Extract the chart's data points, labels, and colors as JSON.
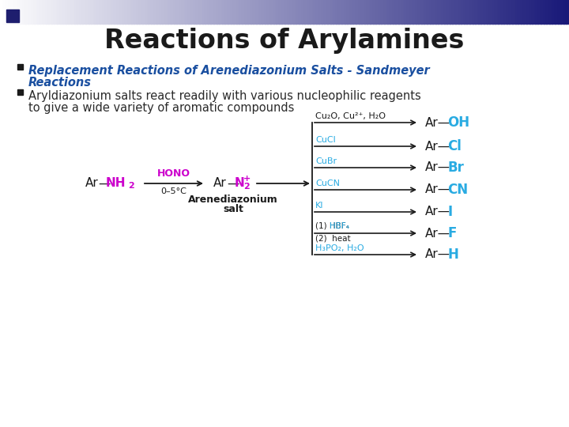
{
  "title": "Reactions of Arylamines",
  "bullet1_line1": "Replacement Reactions of Arenediazonium Salts - Sandmeyer",
  "bullet1_line2": "Reactions",
  "bullet2_line1": "Aryldiazonium salts react readily with various nucleophilic reagents",
  "bullet2_line2": "to give a wide variety of aromatic compounds",
  "title_color": "#1a1a1a",
  "bullet1_color": "#1a4fa0",
  "bullet2_color": "#2a2a2a",
  "reagent_hono_color": "#cc00cc",
  "cyan_color": "#29abe2",
  "black_color": "#1a1a1a",
  "bg_color": "#ffffff",
  "reactions": [
    {
      "reagent": "Cu₂O, Cu²⁺, H₂O",
      "product_prefix": "Ar—",
      "product_suffix": "OH",
      "reagent_cyan": false,
      "hbf_style": false
    },
    {
      "reagent": "CuCl",
      "product_prefix": "Ar—",
      "product_suffix": "Cl",
      "reagent_cyan": true,
      "hbf_style": false
    },
    {
      "reagent": "CuBr",
      "product_prefix": "Ar—",
      "product_suffix": "Br",
      "reagent_cyan": true,
      "hbf_style": false
    },
    {
      "reagent": "CuCN",
      "product_prefix": "Ar—",
      "product_suffix": "CN",
      "reagent_cyan": true,
      "hbf_style": false
    },
    {
      "reagent": "KI",
      "product_prefix": "Ar—",
      "product_suffix": "I",
      "reagent_cyan": true,
      "hbf_style": false
    },
    {
      "reagent": "(1) HBF₄",
      "product_prefix": "Ar—",
      "product_suffix": "F",
      "reagent_cyan": false,
      "hbf_style": true,
      "reagent2": "(2)  heat"
    },
    {
      "reagent": "H₃PO₂, H₂O",
      "product_prefix": "Ar—",
      "product_suffix": "H",
      "reagent_cyan": true,
      "hbf_style": false
    }
  ],
  "header_gradient_colors": [
    "#f0f0f8",
    "#c8cce8",
    "#9090cc",
    "#6060b0",
    "#3030a0",
    "#20208a",
    "#181878"
  ],
  "dark_square_color": "#1e1e6e"
}
